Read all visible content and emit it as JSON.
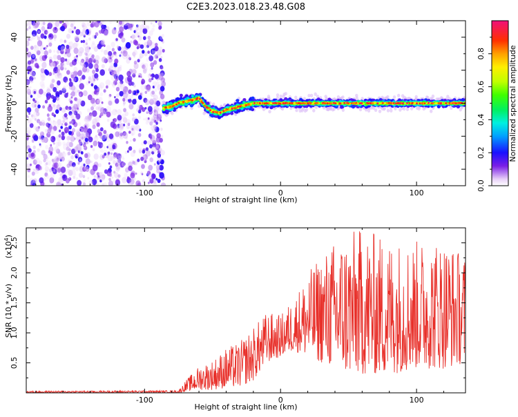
{
  "title": "C2E3.2023.018.23.48.G08",
  "chart_data": [
    {
      "type": "heatmap",
      "name": "spectrogram",
      "xlabel": "Height of straight line (km)",
      "ylabel": "Frequency (Hz)",
      "xlim": [
        -187,
        136
      ],
      "ylim": [
        -50,
        50
      ],
      "xticks": [
        -100,
        0,
        100
      ],
      "yticks": [
        -40,
        -20,
        0,
        20,
        40
      ],
      "noise_region_x": [
        -187,
        -86
      ],
      "signal_trace": [
        {
          "x": -86,
          "y": -3
        },
        {
          "x": -80,
          "y": -2
        },
        {
          "x": -75,
          "y": 0
        },
        {
          "x": -70,
          "y": 1
        },
        {
          "x": -65,
          "y": 2
        },
        {
          "x": -60,
          "y": 3
        },
        {
          "x": -55,
          "y": -2
        },
        {
          "x": -50,
          "y": -5
        },
        {
          "x": -45,
          "y": -6
        },
        {
          "x": -40,
          "y": -4
        },
        {
          "x": -35,
          "y": -3
        },
        {
          "x": -30,
          "y": -2
        },
        {
          "x": -25,
          "y": -1
        },
        {
          "x": -20,
          "y": 0
        },
        {
          "x": -10,
          "y": 0
        },
        {
          "x": 0,
          "y": 0
        },
        {
          "x": 20,
          "y": 0
        },
        {
          "x": 40,
          "y": 0
        },
        {
          "x": 60,
          "y": 0
        },
        {
          "x": 80,
          "y": 0
        },
        {
          "x": 100,
          "y": 0
        },
        {
          "x": 120,
          "y": 0
        },
        {
          "x": 136,
          "y": 0
        }
      ],
      "colorbar": {
        "label": "Normalized spectral amplitude",
        "range": [
          0,
          1
        ],
        "ticks": [
          0.0,
          0.2,
          0.4,
          0.6,
          0.8
        ],
        "tick_labels": [
          "0.0",
          "0.2",
          "0.4",
          "0.6",
          "0.8"
        ]
      }
    },
    {
      "type": "line",
      "name": "snr",
      "xlabel": "Height of straight line (km)",
      "ylabel": "SNR (10 * v/v)",
      "ylabel_scale": "(x10",
      "ylabel_exponent": "4",
      "ylabel_scale_close": ")",
      "xlim": [
        -187,
        136
      ],
      "ylim": [
        0,
        2.75
      ],
      "xticks": [
        -100,
        0,
        100
      ],
      "yticks": [
        0.5,
        1.0,
        1.5,
        2.0,
        2.5
      ],
      "ytick_labels": [
        "0.5",
        "1.0",
        "1.5",
        "2.0",
        "2.5"
      ],
      "color": "#e8302a",
      "envelope": [
        {
          "x": -187,
          "low": 0.0,
          "high": 0.03
        },
        {
          "x": -75,
          "low": 0.0,
          "high": 0.04
        },
        {
          "x": -70,
          "low": 0.02,
          "high": 0.2
        },
        {
          "x": -60,
          "low": 0.05,
          "high": 0.45
        },
        {
          "x": -50,
          "low": 0.05,
          "high": 0.55
        },
        {
          "x": -40,
          "low": 0.08,
          "high": 0.75
        },
        {
          "x": -30,
          "low": 0.1,
          "high": 0.85
        },
        {
          "x": -20,
          "low": 0.2,
          "high": 1.1
        },
        {
          "x": -10,
          "low": 0.5,
          "high": 1.35
        },
        {
          "x": 0,
          "low": 0.6,
          "high": 1.3
        },
        {
          "x": 10,
          "low": 0.7,
          "high": 1.6
        },
        {
          "x": 20,
          "low": 0.6,
          "high": 2.0
        },
        {
          "x": 30,
          "low": 0.5,
          "high": 2.3
        },
        {
          "x": 40,
          "low": 0.4,
          "high": 2.55
        },
        {
          "x": 50,
          "low": 0.3,
          "high": 2.7
        },
        {
          "x": 60,
          "low": 0.3,
          "high": 2.75
        },
        {
          "x": 80,
          "low": 0.3,
          "high": 2.6
        },
        {
          "x": 100,
          "low": 0.4,
          "high": 2.55
        },
        {
          "x": 120,
          "low": 0.4,
          "high": 2.6
        },
        {
          "x": 136,
          "low": 0.5,
          "high": 2.3
        }
      ]
    }
  ]
}
